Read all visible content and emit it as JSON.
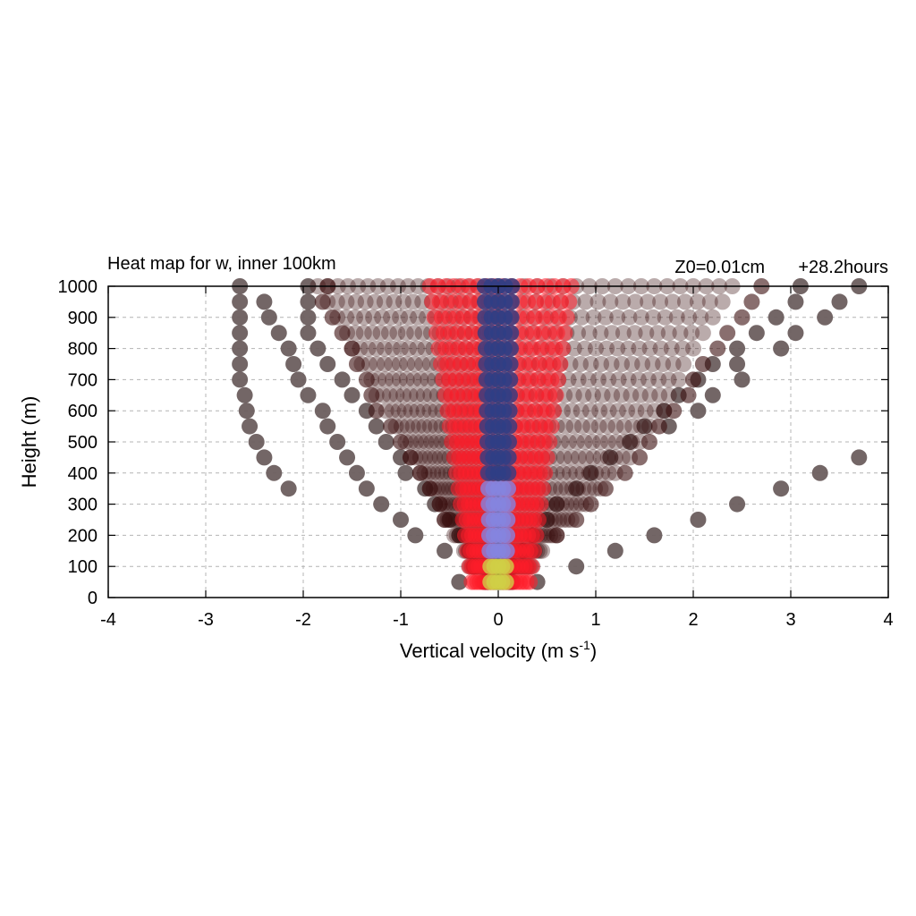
{
  "chart_data": {
    "type": "scatter",
    "title": "Heat map for w, inner 100km",
    "subtitle_left": "Z0=0.01cm",
    "subtitle_right": "+28.2hours",
    "xlabel": "Vertical velocity (m s",
    "xlabel_sup": "-1",
    "xlabel_close": ")",
    "ylabel": "Height (m)",
    "xlim": [
      -4,
      4
    ],
    "ylim": [
      0,
      1000
    ],
    "xticks": [
      -4,
      -3,
      -2,
      -1,
      0,
      1,
      2,
      3,
      4
    ],
    "yticks": [
      0,
      100,
      200,
      300,
      400,
      500,
      600,
      700,
      800,
      900,
      1000
    ],
    "grid": true,
    "colors": {
      "sparse": "#6b5e5e",
      "dark": "#3a0d0d",
      "red": "#ff1e2a",
      "blue": "#2e3f86",
      "lavender": "#8585e0",
      "yellow": "#d0d046"
    },
    "outer_tracks": [
      {
        "name": "outer-left",
        "points": [
          [
            -2.65,
            1000
          ],
          [
            -2.65,
            950
          ],
          [
            -2.65,
            900
          ],
          [
            -2.65,
            850
          ],
          [
            -2.65,
            800
          ],
          [
            -2.65,
            750
          ],
          [
            -2.65,
            700
          ],
          [
            -2.6,
            650
          ],
          [
            -2.58,
            600
          ],
          [
            -2.55,
            550
          ],
          [
            -2.48,
            500
          ],
          [
            -2.4,
            450
          ],
          [
            -2.3,
            400
          ],
          [
            -2.15,
            350
          ]
        ]
      },
      {
        "name": "left-2",
        "points": [
          [
            -2.4,
            950
          ],
          [
            -2.35,
            900
          ],
          [
            -2.25,
            850
          ],
          [
            -2.15,
            800
          ],
          [
            -2.1,
            750
          ],
          [
            -2.05,
            700
          ],
          [
            -1.95,
            650
          ],
          [
            -1.8,
            600
          ],
          [
            -1.75,
            550
          ],
          [
            -1.65,
            500
          ],
          [
            -1.55,
            450
          ],
          [
            -1.45,
            400
          ],
          [
            -1.35,
            350
          ],
          [
            -1.2,
            300
          ],
          [
            -1.0,
            250
          ],
          [
            -0.85,
            200
          ],
          [
            -0.55,
            150
          ]
        ]
      },
      {
        "name": "left-3",
        "points": [
          [
            -1.95,
            1000
          ],
          [
            -1.95,
            950
          ],
          [
            -1.95,
            900
          ],
          [
            -1.95,
            850
          ],
          [
            -1.85,
            800
          ],
          [
            -1.75,
            750
          ],
          [
            -1.6,
            700
          ],
          [
            -1.5,
            650
          ],
          [
            -1.35,
            600
          ],
          [
            -1.25,
            550
          ],
          [
            -1.15,
            500
          ],
          [
            -1.0,
            450
          ],
          [
            -0.95,
            400
          ],
          [
            -0.75,
            350
          ],
          [
            -0.65,
            300
          ],
          [
            -0.5,
            250
          ],
          [
            -0.4,
            200
          ],
          [
            -0.3,
            150
          ],
          [
            -0.25,
            100
          ],
          [
            -0.4,
            50
          ]
        ]
      },
      {
        "name": "right-outer",
        "points": [
          [
            3.7,
            1000
          ],
          [
            3.5,
            950
          ],
          [
            3.35,
            900
          ],
          [
            3.05,
            850
          ],
          [
            2.9,
            800
          ],
          [
            2.45,
            750
          ],
          [
            2.5,
            700
          ],
          [
            2.2,
            650
          ],
          [
            2.05,
            600
          ],
          [
            1.75,
            550
          ],
          [
            3.7,
            450
          ],
          [
            3.3,
            400
          ],
          [
            2.9,
            350
          ],
          [
            2.45,
            300
          ],
          [
            2.05,
            250
          ],
          [
            1.6,
            200
          ],
          [
            1.2,
            150
          ],
          [
            0.8,
            100
          ],
          [
            0.4,
            50
          ]
        ]
      },
      {
        "name": "right-2",
        "points": [
          [
            3.1,
            1000
          ],
          [
            3.05,
            950
          ],
          [
            2.85,
            900
          ],
          [
            2.65,
            850
          ],
          [
            2.45,
            800
          ],
          [
            2.2,
            750
          ],
          [
            2.05,
            700
          ],
          [
            1.85,
            650
          ],
          [
            1.7,
            600
          ],
          [
            1.5,
            550
          ],
          [
            1.35,
            500
          ],
          [
            1.15,
            450
          ],
          [
            0.95,
            400
          ],
          [
            0.8,
            350
          ],
          [
            0.6,
            300
          ],
          [
            0.5,
            250
          ],
          [
            0.35,
            200
          ],
          [
            0.25,
            150
          ],
          [
            0.15,
            100
          ]
        ]
      },
      {
        "name": "cloud-left",
        "points": [
          [
            -1.0,
            500
          ],
          [
            -0.9,
            450
          ],
          [
            -1.1,
            550
          ],
          [
            -1.25,
            600
          ],
          [
            -1.3,
            650
          ],
          [
            -1.35,
            700
          ],
          [
            -1.45,
            750
          ],
          [
            -1.5,
            800
          ],
          [
            -1.6,
            850
          ],
          [
            -1.7,
            900
          ],
          [
            -1.8,
            950
          ],
          [
            -1.75,
            1000
          ],
          [
            -0.8,
            400
          ],
          [
            -0.7,
            350
          ],
          [
            -0.6,
            300
          ],
          [
            -0.55,
            250
          ]
        ]
      },
      {
        "name": "cloud-right",
        "points": [
          [
            1.55,
            500
          ],
          [
            1.45,
            450
          ],
          [
            1.65,
            550
          ],
          [
            1.8,
            600
          ],
          [
            1.95,
            650
          ],
          [
            2.0,
            700
          ],
          [
            2.1,
            750
          ],
          [
            2.25,
            800
          ],
          [
            2.35,
            850
          ],
          [
            2.5,
            900
          ],
          [
            2.6,
            950
          ],
          [
            2.7,
            1000
          ],
          [
            1.3,
            400
          ],
          [
            1.1,
            350
          ],
          [
            0.95,
            300
          ],
          [
            0.8,
            250
          ],
          [
            0.6,
            200
          ]
        ]
      }
    ],
    "profile": [
      {
        "height": 50,
        "lo": -0.15,
        "hi": 0.15
      },
      {
        "height": 100,
        "lo": -0.3,
        "hi": 0.35
      },
      {
        "height": 150,
        "lo": -0.35,
        "hi": 0.45
      },
      {
        "height": 200,
        "lo": -0.45,
        "hi": 0.6
      },
      {
        "height": 250,
        "lo": -0.55,
        "hi": 0.75
      },
      {
        "height": 300,
        "lo": -0.6,
        "hi": 0.9
      },
      {
        "height": 350,
        "lo": -0.7,
        "hi": 1.05
      },
      {
        "height": 400,
        "lo": -0.8,
        "hi": 1.2
      },
      {
        "height": 450,
        "lo": -0.9,
        "hi": 1.35
      },
      {
        "height": 500,
        "lo": -0.95,
        "hi": 1.45
      },
      {
        "height": 550,
        "lo": -1.05,
        "hi": 1.55
      },
      {
        "height": 600,
        "lo": -1.15,
        "hi": 1.7
      },
      {
        "height": 650,
        "lo": -1.25,
        "hi": 1.75
      },
      {
        "height": 700,
        "lo": -1.3,
        "hi": 1.85
      },
      {
        "height": 750,
        "lo": -1.4,
        "hi": 1.9
      },
      {
        "height": 800,
        "lo": -1.5,
        "hi": 2.0
      },
      {
        "height": 850,
        "lo": -1.55,
        "hi": 2.1
      },
      {
        "height": 900,
        "lo": -1.65,
        "hi": 2.2
      },
      {
        "height": 950,
        "lo": -1.75,
        "hi": 2.3
      },
      {
        "height": 1000,
        "lo": -1.85,
        "hi": 2.4
      }
    ]
  }
}
